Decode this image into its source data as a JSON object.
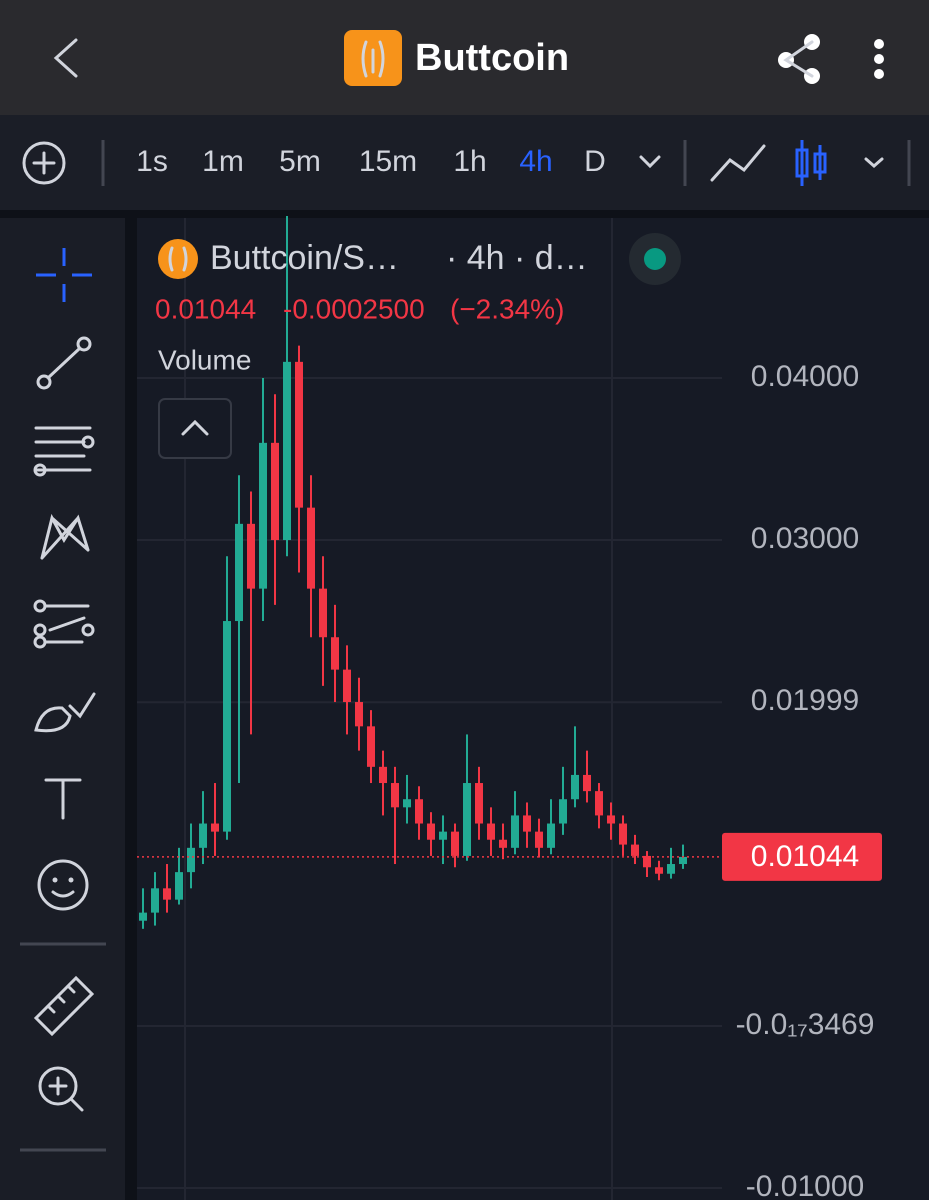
{
  "header": {
    "title": "Buttcoin"
  },
  "toolbar": {
    "intervals": [
      "1s",
      "1m",
      "5m",
      "15m",
      "1h",
      "4h",
      "D"
    ],
    "active": "4h"
  },
  "chart_data": {
    "type": "candlestick",
    "legend": {
      "symbol": "Buttcoin/S…",
      "meta": "· 4h · d…",
      "indicator": "Volume"
    },
    "change": {
      "value": -0.00025,
      "label": "-0.0002500"
    },
    "change_percent": {
      "value": -2.34,
      "label": "(−2.34%)"
    },
    "last_price": 0.01044,
    "up_color": "#22ab94",
    "down_color": "#f23645",
    "open": [
      0.0065,
      0.007,
      0.0085,
      0.0078,
      0.0095,
      0.011,
      0.0125,
      0.012,
      0.025,
      0.031,
      0.027,
      0.036,
      0.03,
      0.041,
      0.032,
      0.027,
      0.024,
      0.022,
      0.02,
      0.0185,
      0.016,
      0.015,
      0.0135,
      0.014,
      0.0125,
      0.0115,
      0.012,
      0.0105,
      0.015,
      0.0125,
      0.0115,
      0.011,
      0.013,
      0.012,
      0.011,
      0.0125,
      0.014,
      0.0155,
      0.0145,
      0.013,
      0.0125,
      0.0112,
      0.0105,
      0.0098,
      0.0094,
      0.01
    ],
    "high": [
      0.0085,
      0.0095,
      0.01,
      0.011,
      0.0125,
      0.0145,
      0.015,
      0.029,
      0.034,
      0.033,
      0.04,
      0.039,
      0.05,
      0.042,
      0.034,
      0.029,
      0.026,
      0.0235,
      0.0215,
      0.0195,
      0.017,
      0.016,
      0.0155,
      0.0148,
      0.0132,
      0.013,
      0.0125,
      0.018,
      0.016,
      0.0135,
      0.0125,
      0.0145,
      0.0138,
      0.0128,
      0.014,
      0.016,
      0.0185,
      0.017,
      0.015,
      0.0138,
      0.013,
      0.0118,
      0.0108,
      0.0102,
      0.011,
      0.0112
    ],
    "low": [
      0.006,
      0.0062,
      0.007,
      0.0075,
      0.0085,
      0.01,
      0.0105,
      0.0115,
      0.015,
      0.018,
      0.025,
      0.026,
      0.029,
      0.028,
      0.024,
      0.021,
      0.02,
      0.018,
      0.017,
      0.015,
      0.013,
      0.01,
      0.0125,
      0.0115,
      0.0105,
      0.01,
      0.0098,
      0.0102,
      0.0115,
      0.0105,
      0.0103,
      0.0106,
      0.011,
      0.0104,
      0.0106,
      0.0118,
      0.0135,
      0.0138,
      0.0122,
      0.0115,
      0.0105,
      0.01,
      0.0092,
      0.009,
      0.0091,
      0.0097
    ],
    "close": [
      0.007,
      0.0085,
      0.0078,
      0.0095,
      0.011,
      0.0125,
      0.012,
      0.025,
      0.031,
      0.027,
      0.036,
      0.03,
      0.041,
      0.032,
      0.027,
      0.024,
      0.022,
      0.02,
      0.0185,
      0.016,
      0.015,
      0.0135,
      0.014,
      0.0125,
      0.0115,
      0.012,
      0.0105,
      0.015,
      0.0125,
      0.0115,
      0.011,
      0.013,
      0.012,
      0.011,
      0.0125,
      0.014,
      0.0155,
      0.0145,
      0.013,
      0.0125,
      0.0112,
      0.0105,
      0.0098,
      0.0094,
      0.01,
      0.01044
    ],
    "ylim": [
      -0.01074,
      0.04988
    ],
    "yticks": [
      {
        "value": 0.04,
        "label": "0.04000"
      },
      {
        "value": 0.03,
        "label": "0.03000"
      },
      0.01999,
      {
        "value": -3.469e-18,
        "label": "-0.0₁₇3469"
      },
      {
        "value": -0.01,
        "label": "-0.01000"
      }
    ],
    "grid": true
  }
}
